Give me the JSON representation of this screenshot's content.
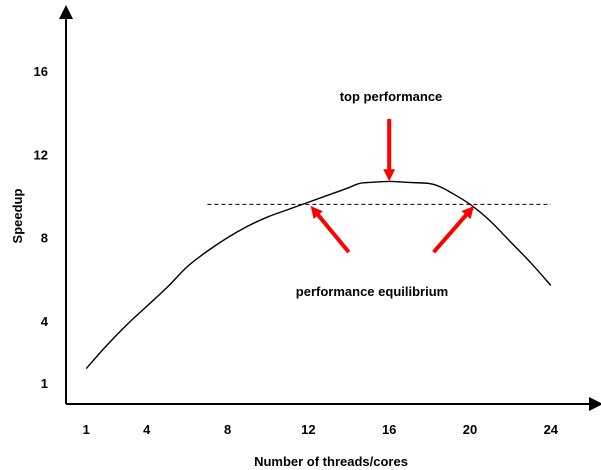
{
  "chart_data": {
    "type": "line",
    "title": "",
    "xlabel": "Number of threads/cores",
    "ylabel": "Speedup",
    "x_ticks": [
      1,
      4,
      8,
      12,
      16,
      20,
      24
    ],
    "y_ticks": [
      1,
      4,
      8,
      12,
      16
    ],
    "xlim": [
      0,
      25.5
    ],
    "ylim": [
      0,
      19
    ],
    "grid": false,
    "legend": "none",
    "series": [
      {
        "x": [
          1,
          2,
          3,
          4,
          5,
          6,
          7,
          8,
          9,
          10,
          11,
          12,
          13,
          14,
          14.5,
          15,
          16,
          17,
          18,
          18.5,
          19,
          20,
          21,
          22,
          23,
          24
        ],
        "y": [
          1.7,
          2.8,
          3.8,
          4.7,
          5.6,
          6.6,
          7.35,
          8.0,
          8.55,
          9.0,
          9.35,
          9.7,
          10.05,
          10.4,
          10.6,
          10.65,
          10.7,
          10.65,
          10.6,
          10.45,
          10.2,
          9.6,
          8.8,
          7.8,
          6.8,
          5.7
        ],
        "color": "#000000"
      }
    ],
    "reference_line": {
      "y": 9.6,
      "x_range": [
        7,
        24
      ],
      "style": "dashed"
    },
    "annotations": [
      {
        "text": "top performance",
        "arrow_from": [
          16,
          13.7
        ],
        "arrow_to": [
          16,
          11.0
        ],
        "color": "#ff0000"
      },
      {
        "text": "performance equilibrium",
        "arrows": [
          {
            "from": [
              14,
              7.3
            ],
            "to": [
              12.3,
              9.3
            ]
          },
          {
            "from": [
              18.2,
              7.3
            ],
            "to": [
              20,
              9.3
            ]
          }
        ],
        "color": "#ff0000"
      }
    ]
  }
}
